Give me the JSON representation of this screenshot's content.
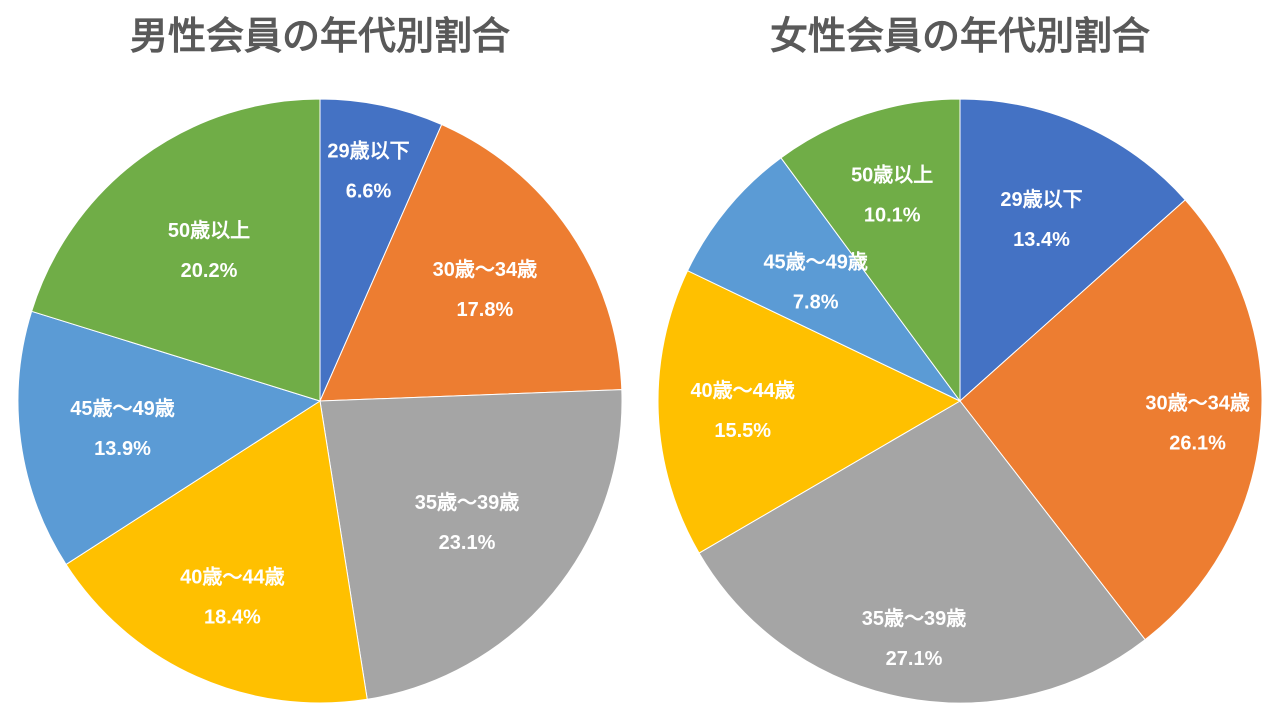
{
  "chart_data": [
    {
      "type": "pie",
      "title": "男性会員の年代別割合",
      "categories": [
        "29歳以下",
        "30歳～34歳",
        "35歳～39歳",
        "40歳～44歳",
        "45歳～49歳",
        "50歳以上"
      ],
      "values": [
        6.6,
        17.8,
        23.1,
        18.4,
        13.9,
        20.2
      ],
      "value_labels": [
        "6.6%",
        "17.8%",
        "23.1%",
        "18.4%",
        "13.9%",
        "20.2%"
      ],
      "colors": [
        "#4472C4",
        "#ED7D31",
        "#A5A5A5",
        "#FFC000",
        "#5B9BD5",
        "#70AD47"
      ],
      "legend": "none",
      "start": "12 o'clock, clockwise"
    },
    {
      "type": "pie",
      "title": "女性会員の年代別割合",
      "categories": [
        "29歳以下",
        "30歳～34歳",
        "35歳～39歳",
        "40歳～44歳",
        "45歳～49歳",
        "50歳以上"
      ],
      "values": [
        13.4,
        26.1,
        27.1,
        15.5,
        7.8,
        10.1
      ],
      "value_labels": [
        "13.4%",
        "26.1%",
        "27.1%",
        "15.5%",
        "7.8%",
        "10.1%"
      ],
      "colors": [
        "#4472C4",
        "#ED7D31",
        "#A5A5A5",
        "#FFC000",
        "#5B9BD5",
        "#70AD47"
      ],
      "legend": "none",
      "start": "12 o'clock, clockwise"
    }
  ]
}
